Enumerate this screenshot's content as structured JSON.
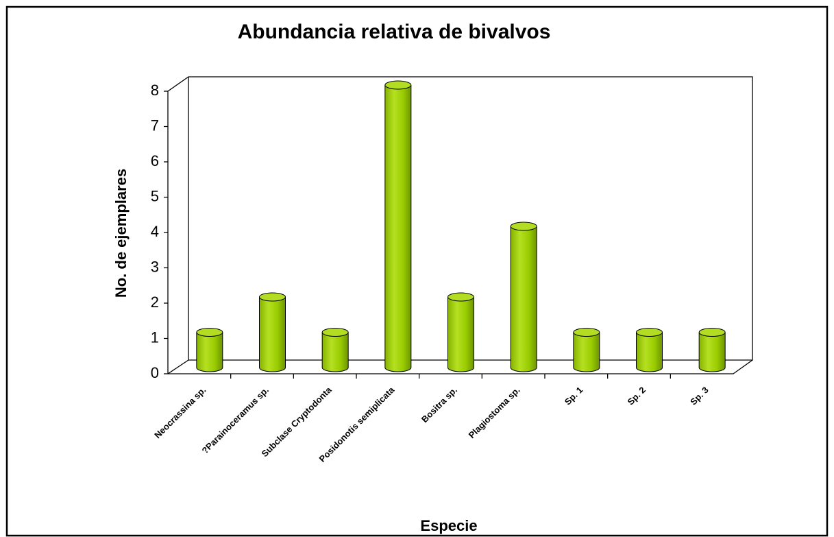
{
  "chart_data": {
    "type": "bar3d",
    "title": "Abundancia relativa de bivalvos",
    "x_label": "Especie",
    "y_label": "No. de ejemplares",
    "categories": [
      "Neocrassina sp.",
      "?Parainoceramus sp.",
      "Subclase Cryptodonta",
      "Posidonotis semiplicata",
      "Bositra sp.",
      "Plagiostoma sp.",
      "Sp. 1",
      "Sp. 2",
      "Sp. 3"
    ],
    "values": [
      1,
      2,
      1,
      8,
      2,
      4,
      1,
      1,
      1
    ],
    "color": "#99cc00",
    "ylim": [
      0,
      8
    ],
    "yticks": [
      0,
      1,
      2,
      3,
      4,
      5,
      6,
      7,
      8
    ],
    "grid": false
  }
}
